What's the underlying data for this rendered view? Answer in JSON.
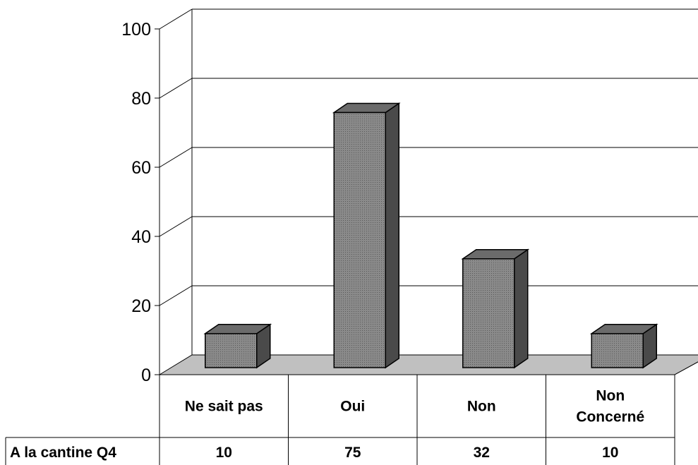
{
  "chart_data": {
    "type": "bar",
    "categories": [
      "Ne sait pas",
      "Oui",
      "Non",
      "Non\nConcerné"
    ],
    "series": [
      {
        "name": "A la cantine Q4",
        "values": [
          10,
          75,
          32,
          10
        ]
      }
    ],
    "value_labels": [
      "10",
      "75",
      "32",
      "10"
    ],
    "y_ticks": [
      "0",
      "20",
      "40",
      "60",
      "80",
      "100"
    ],
    "ylim": [
      0,
      100
    ],
    "grid": true,
    "legend": "data-table",
    "colors": {
      "bar_front": "#7f7f7f",
      "bar_side": "#4a4a4a",
      "bar_top": "#6b6b6b",
      "floor": "#c0c0c0",
      "grid": "#000000"
    }
  }
}
